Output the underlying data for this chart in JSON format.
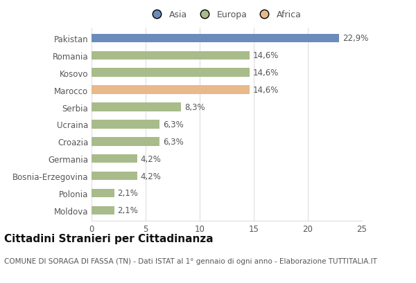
{
  "categories": [
    "Moldova",
    "Polonia",
    "Bosnia-Erzegovina",
    "Germania",
    "Croazia",
    "Ucraina",
    "Serbia",
    "Marocco",
    "Kosovo",
    "Romania",
    "Pakistan"
  ],
  "values": [
    2.1,
    2.1,
    4.2,
    4.2,
    6.3,
    6.3,
    8.3,
    14.6,
    14.6,
    14.6,
    22.9
  ],
  "labels": [
    "2,1%",
    "2,1%",
    "4,2%",
    "4,2%",
    "6,3%",
    "6,3%",
    "8,3%",
    "14,6%",
    "14,6%",
    "14,6%",
    "22,9%"
  ],
  "colors": [
    "#a8bb8a",
    "#a8bb8a",
    "#a8bb8a",
    "#a8bb8a",
    "#a8bb8a",
    "#a8bb8a",
    "#a8bb8a",
    "#e8b98a",
    "#a8bb8a",
    "#a8bb8a",
    "#6b8cba"
  ],
  "legend": [
    {
      "label": "Asia",
      "color": "#6b8cba"
    },
    {
      "label": "Europa",
      "color": "#a8bb8a"
    },
    {
      "label": "Africa",
      "color": "#e8b98a"
    }
  ],
  "xlim": [
    0,
    25
  ],
  "xticks": [
    0,
    5,
    10,
    15,
    20,
    25
  ],
  "title": "Cittadini Stranieri per Cittadinanza",
  "subtitle": "COMUNE DI SORAGA DI FASSA (TN) - Dati ISTAT al 1° gennaio di ogni anno - Elaborazione TUTTITALIA.IT",
  "background_color": "#ffffff",
  "bar_height": 0.5,
  "label_fontsize": 8.5,
  "ytick_fontsize": 8.5,
  "xtick_fontsize": 8.5,
  "title_fontsize": 11,
  "subtitle_fontsize": 7.5,
  "grid_color": "#dddddd",
  "text_color": "#555555",
  "title_color": "#111111"
}
